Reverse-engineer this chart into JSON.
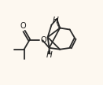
{
  "background_color": "#fdf8f0",
  "line_color": "#2a2a2a",
  "line_width": 1.3,
  "text_color": "#1a1a1a",
  "H_label_1": "H",
  "H_label_2": "H",
  "O_ester_label": "O",
  "O_carbonyl_label": "O",
  "figsize": [
    1.31,
    1.08
  ],
  "dpi": 100
}
